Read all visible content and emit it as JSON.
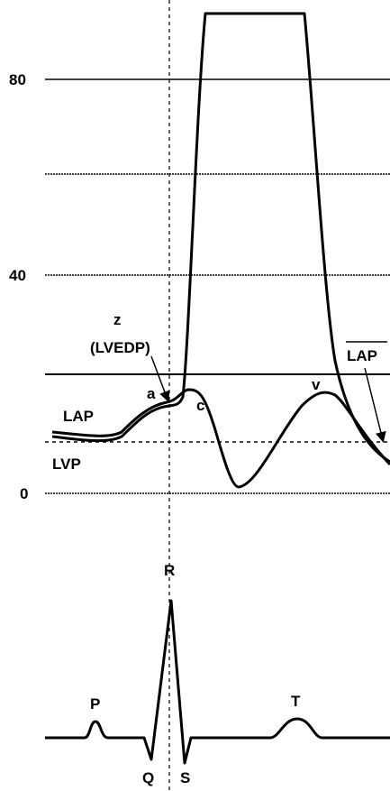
{
  "axis": {
    "ticks": [
      "80",
      "40",
      "0"
    ]
  },
  "labels": {
    "z": "z",
    "lvedp": "(LVEDP)",
    "lap": "LAP",
    "lvp": "LVP",
    "a_wave": "a",
    "c_wave": "c",
    "v_wave": "v",
    "mean_lap": "LAP"
  },
  "ecg": {
    "r": "R",
    "p": "P",
    "q": "Q",
    "s": "S",
    "t": "T"
  }
}
